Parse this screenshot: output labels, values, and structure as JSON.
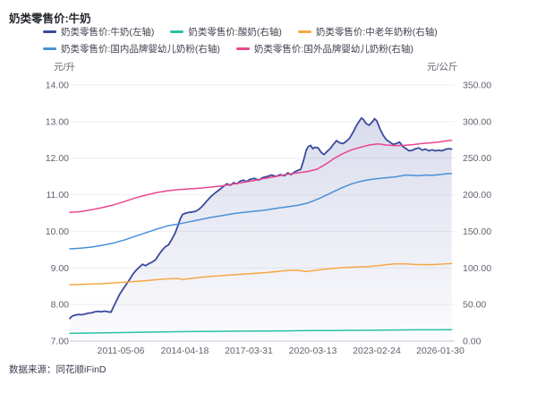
{
  "header": {
    "title": "奶类零售价:牛奶"
  },
  "source": {
    "label": "数据来源：",
    "value": "同花顺iFinD"
  },
  "colors": {
    "milk": "#3b4a9b",
    "yogurt": "#2bbfa7",
    "elder_powder": "#f6a844",
    "domestic_formula": "#4a90d8",
    "foreign_formula": "#e8478f",
    "grid": "#eceef3",
    "axis_line": "#c6cad2",
    "tick_text": "#61646f"
  },
  "chart_data": {
    "type": "line",
    "title": "奶类零售价:牛奶",
    "grid": "horizontal-only",
    "legend_position": "top",
    "x_axis": {
      "type": "time",
      "range": [
        2009.0,
        2026.74
      ],
      "ticks": [
        {
          "label": "2011-05-06",
          "position": 2011.35
        },
        {
          "label": "2014-04-18",
          "position": 2014.3
        },
        {
          "label": "2017-03-31",
          "position": 2017.25
        },
        {
          "label": "2020-03-13",
          "position": 2020.2
        },
        {
          "label": "2023-02-24",
          "position": 2023.15
        },
        {
          "label": "2026-01-30",
          "position": 2026.08
        }
      ]
    },
    "y_left": {
      "unit": "元/升",
      "range": [
        7,
        14
      ],
      "tick_values": [
        14,
        13,
        12,
        11,
        10,
        9,
        8,
        7
      ],
      "tick_labels": [
        "14.00",
        "13.00",
        "12.00",
        "11.00",
        "10.00",
        "9.00",
        "8.00",
        "7.00"
      ]
    },
    "y_right": {
      "unit": "元/公斤",
      "range": [
        0,
        350
      ],
      "tick_values": [
        350,
        300,
        250,
        200,
        150,
        100,
        50,
        0
      ],
      "tick_labels": [
        "350.00",
        "300.00",
        "250.00",
        "200.00",
        "150.00",
        "100.00",
        "50.00",
        "0.00"
      ]
    },
    "series": [
      {
        "name": "奶类零售价:牛奶(左轴)",
        "axis": "left",
        "color": "#3b4a9b",
        "area": true,
        "points": [
          [
            2009.0,
            7.62
          ],
          [
            2009.1,
            7.68
          ],
          [
            2009.25,
            7.71
          ],
          [
            2009.4,
            7.73
          ],
          [
            2009.55,
            7.72
          ],
          [
            2009.7,
            7.74
          ],
          [
            2009.85,
            7.76
          ],
          [
            2010.0,
            7.77
          ],
          [
            2010.15,
            7.8
          ],
          [
            2010.3,
            7.81
          ],
          [
            2010.45,
            7.8
          ],
          [
            2010.6,
            7.82
          ],
          [
            2010.75,
            7.8
          ],
          [
            2010.9,
            7.79
          ],
          [
            2011.0,
            7.92
          ],
          [
            2011.15,
            8.1
          ],
          [
            2011.3,
            8.28
          ],
          [
            2011.45,
            8.42
          ],
          [
            2011.6,
            8.55
          ],
          [
            2011.75,
            8.68
          ],
          [
            2011.9,
            8.82
          ],
          [
            2012.05,
            8.93
          ],
          [
            2012.2,
            9.02
          ],
          [
            2012.35,
            9.1
          ],
          [
            2012.5,
            9.06
          ],
          [
            2012.65,
            9.12
          ],
          [
            2012.8,
            9.16
          ],
          [
            2012.95,
            9.22
          ],
          [
            2013.1,
            9.36
          ],
          [
            2013.25,
            9.48
          ],
          [
            2013.4,
            9.58
          ],
          [
            2013.55,
            9.63
          ],
          [
            2013.7,
            9.78
          ],
          [
            2013.85,
            9.95
          ],
          [
            2014.0,
            10.18
          ],
          [
            2014.1,
            10.35
          ],
          [
            2014.2,
            10.46
          ],
          [
            2014.35,
            10.5
          ],
          [
            2014.5,
            10.52
          ],
          [
            2014.65,
            10.53
          ],
          [
            2014.8,
            10.55
          ],
          [
            2014.95,
            10.6
          ],
          [
            2015.1,
            10.68
          ],
          [
            2015.3,
            10.82
          ],
          [
            2015.5,
            10.95
          ],
          [
            2015.7,
            11.05
          ],
          [
            2015.9,
            11.14
          ],
          [
            2016.1,
            11.24
          ],
          [
            2016.25,
            11.3
          ],
          [
            2016.4,
            11.26
          ],
          [
            2016.55,
            11.33
          ],
          [
            2016.7,
            11.3
          ],
          [
            2016.85,
            11.37
          ],
          [
            2017.0,
            11.4
          ],
          [
            2017.15,
            11.36
          ],
          [
            2017.3,
            11.42
          ],
          [
            2017.5,
            11.45
          ],
          [
            2017.7,
            11.4
          ],
          [
            2017.9,
            11.47
          ],
          [
            2018.1,
            11.5
          ],
          [
            2018.3,
            11.54
          ],
          [
            2018.5,
            11.5
          ],
          [
            2018.7,
            11.55
          ],
          [
            2018.9,
            11.52
          ],
          [
            2019.05,
            11.6
          ],
          [
            2019.2,
            11.55
          ],
          [
            2019.35,
            11.62
          ],
          [
            2019.5,
            11.66
          ],
          [
            2019.65,
            11.7
          ],
          [
            2019.78,
            11.95
          ],
          [
            2019.9,
            12.22
          ],
          [
            2020.0,
            12.32
          ],
          [
            2020.1,
            12.35
          ],
          [
            2020.2,
            12.26
          ],
          [
            2020.3,
            12.3
          ],
          [
            2020.45,
            12.28
          ],
          [
            2020.6,
            12.15
          ],
          [
            2020.72,
            12.1
          ],
          [
            2020.85,
            12.18
          ],
          [
            2021.0,
            12.26
          ],
          [
            2021.15,
            12.38
          ],
          [
            2021.3,
            12.48
          ],
          [
            2021.45,
            12.42
          ],
          [
            2021.6,
            12.4
          ],
          [
            2021.75,
            12.46
          ],
          [
            2021.9,
            12.55
          ],
          [
            2022.05,
            12.7
          ],
          [
            2022.2,
            12.88
          ],
          [
            2022.35,
            13.02
          ],
          [
            2022.45,
            13.1
          ],
          [
            2022.55,
            13.05
          ],
          [
            2022.65,
            12.95
          ],
          [
            2022.8,
            12.9
          ],
          [
            2022.95,
            13.0
          ],
          [
            2023.05,
            13.08
          ],
          [
            2023.15,
            13.02
          ],
          [
            2023.3,
            12.8
          ],
          [
            2023.45,
            12.62
          ],
          [
            2023.6,
            12.5
          ],
          [
            2023.75,
            12.44
          ],
          [
            2023.9,
            12.38
          ],
          [
            2024.05,
            12.4
          ],
          [
            2024.2,
            12.44
          ],
          [
            2024.35,
            12.32
          ],
          [
            2024.5,
            12.26
          ],
          [
            2024.65,
            12.2
          ],
          [
            2024.8,
            12.22
          ],
          [
            2024.95,
            12.26
          ],
          [
            2025.1,
            12.28
          ],
          [
            2025.25,
            12.22
          ],
          [
            2025.4,
            12.25
          ],
          [
            2025.55,
            12.2
          ],
          [
            2025.7,
            12.23
          ],
          [
            2025.85,
            12.2
          ],
          [
            2026.0,
            12.22
          ],
          [
            2026.15,
            12.2
          ],
          [
            2026.3,
            12.24
          ],
          [
            2026.45,
            12.26
          ],
          [
            2026.6,
            12.25
          ]
        ]
      },
      {
        "name": "奶类零售价:酸奶(右轴)",
        "axis": "right",
        "color": "#2bbfa7",
        "area": false,
        "points": [
          [
            2009.0,
            10.5
          ],
          [
            2010.0,
            11.0
          ],
          [
            2011.0,
            11.5
          ],
          [
            2012.0,
            12.0
          ],
          [
            2013.0,
            12.4
          ],
          [
            2014.0,
            12.8
          ],
          [
            2015.0,
            13.1
          ],
          [
            2016.0,
            13.4
          ],
          [
            2017.0,
            13.6
          ],
          [
            2018.0,
            13.8
          ],
          [
            2019.0,
            14.0
          ],
          [
            2020.0,
            14.3
          ],
          [
            2021.0,
            14.5
          ],
          [
            2022.0,
            14.7
          ],
          [
            2023.0,
            14.8
          ],
          [
            2024.0,
            15.2
          ],
          [
            2025.0,
            15.4
          ],
          [
            2026.0,
            15.4
          ],
          [
            2026.6,
            15.5
          ]
        ]
      },
      {
        "name": "奶类零售价:中老年奶粉(右轴)",
        "axis": "right",
        "color": "#f6a844",
        "area": false,
        "points": [
          [
            2009.0,
            77
          ],
          [
            2009.5,
            77.5
          ],
          [
            2010.0,
            78
          ],
          [
            2010.5,
            78.5
          ],
          [
            2011.0,
            79.5
          ],
          [
            2011.5,
            80.5
          ],
          [
            2012.0,
            81.5
          ],
          [
            2012.5,
            82.5
          ],
          [
            2013.0,
            84
          ],
          [
            2013.5,
            85
          ],
          [
            2014.0,
            85.5
          ],
          [
            2014.2,
            84
          ],
          [
            2014.4,
            85
          ],
          [
            2014.7,
            86
          ],
          [
            2015.0,
            87
          ],
          [
            2015.5,
            88.5
          ],
          [
            2016.0,
            89.5
          ],
          [
            2016.5,
            90.5
          ],
          [
            2017.0,
            91.5
          ],
          [
            2017.5,
            92.5
          ],
          [
            2018.0,
            93.5
          ],
          [
            2018.5,
            95
          ],
          [
            2019.0,
            96.5
          ],
          [
            2019.4,
            97
          ],
          [
            2019.7,
            96
          ],
          [
            2019.9,
            95
          ],
          [
            2020.1,
            96
          ],
          [
            2020.4,
            97
          ],
          [
            2020.8,
            98.5
          ],
          [
            2021.2,
            99.5
          ],
          [
            2021.6,
            100.5
          ],
          [
            2022.0,
            101
          ],
          [
            2022.4,
            101.5
          ],
          [
            2022.8,
            102
          ],
          [
            2023.2,
            103
          ],
          [
            2023.6,
            104.5
          ],
          [
            2024.0,
            105.5
          ],
          [
            2024.4,
            105.5
          ],
          [
            2024.8,
            105
          ],
          [
            2025.2,
            104.5
          ],
          [
            2025.6,
            104.5
          ],
          [
            2026.0,
            105
          ],
          [
            2026.3,
            105.5
          ],
          [
            2026.6,
            106
          ]
        ]
      },
      {
        "name": "奶类零售价:国内品牌婴幼儿奶粉(右轴)",
        "axis": "right",
        "color": "#4a90d8",
        "area": false,
        "points": [
          [
            2009.0,
            126
          ],
          [
            2009.5,
            127
          ],
          [
            2010.0,
            128.5
          ],
          [
            2010.5,
            131
          ],
          [
            2011.0,
            134
          ],
          [
            2011.5,
            138
          ],
          [
            2012.0,
            143
          ],
          [
            2012.5,
            148
          ],
          [
            2013.0,
            153
          ],
          [
            2013.5,
            157.5
          ],
          [
            2014.0,
            160
          ],
          [
            2014.5,
            163
          ],
          [
            2015.0,
            166
          ],
          [
            2015.5,
            169
          ],
          [
            2016.0,
            171.5
          ],
          [
            2016.5,
            174
          ],
          [
            2017.0,
            176
          ],
          [
            2017.5,
            177.5
          ],
          [
            2018.0,
            179
          ],
          [
            2018.5,
            181.5
          ],
          [
            2019.0,
            183.5
          ],
          [
            2019.5,
            185.5
          ],
          [
            2020.0,
            189
          ],
          [
            2020.5,
            195
          ],
          [
            2021.0,
            202
          ],
          [
            2021.5,
            209
          ],
          [
            2022.0,
            215
          ],
          [
            2022.5,
            219
          ],
          [
            2023.0,
            221.5
          ],
          [
            2023.5,
            223
          ],
          [
            2024.0,
            224.5
          ],
          [
            2024.5,
            227
          ],
          [
            2024.8,
            226.5
          ],
          [
            2025.1,
            226
          ],
          [
            2025.4,
            227
          ],
          [
            2025.7,
            226.5
          ],
          [
            2026.0,
            227.5
          ],
          [
            2026.3,
            228.5
          ],
          [
            2026.6,
            229
          ]
        ]
      },
      {
        "name": "奶类零售价:国外品牌婴幼儿奶粉(右轴)",
        "axis": "right",
        "color": "#e8478f",
        "area": false,
        "points": [
          [
            2009.0,
            176
          ],
          [
            2009.5,
            177
          ],
          [
            2010.0,
            179.5
          ],
          [
            2010.5,
            182.5
          ],
          [
            2011.0,
            186
          ],
          [
            2011.5,
            190.5
          ],
          [
            2012.0,
            195.5
          ],
          [
            2012.5,
            199.5
          ],
          [
            2013.0,
            203
          ],
          [
            2013.5,
            205.5
          ],
          [
            2014.0,
            207
          ],
          [
            2014.5,
            208
          ],
          [
            2015.0,
            209
          ],
          [
            2015.5,
            210.5
          ],
          [
            2016.0,
            212
          ],
          [
            2016.5,
            214.5
          ],
          [
            2017.0,
            217
          ],
          [
            2017.5,
            219.5
          ],
          [
            2018.0,
            222.5
          ],
          [
            2018.5,
            225
          ],
          [
            2019.0,
            228
          ],
          [
            2019.5,
            230
          ],
          [
            2020.0,
            232
          ],
          [
            2020.4,
            235
          ],
          [
            2020.8,
            242
          ],
          [
            2021.2,
            250
          ],
          [
            2021.6,
            256.5
          ],
          [
            2022.0,
            261.5
          ],
          [
            2022.4,
            265
          ],
          [
            2022.8,
            268
          ],
          [
            2023.2,
            269.5
          ],
          [
            2023.6,
            268
          ],
          [
            2024.0,
            267
          ],
          [
            2024.4,
            267.5
          ],
          [
            2024.8,
            268.5
          ],
          [
            2025.2,
            270
          ],
          [
            2025.6,
            271
          ],
          [
            2026.0,
            272
          ],
          [
            2026.3,
            273.5
          ],
          [
            2026.6,
            274.5
          ]
        ]
      }
    ]
  }
}
